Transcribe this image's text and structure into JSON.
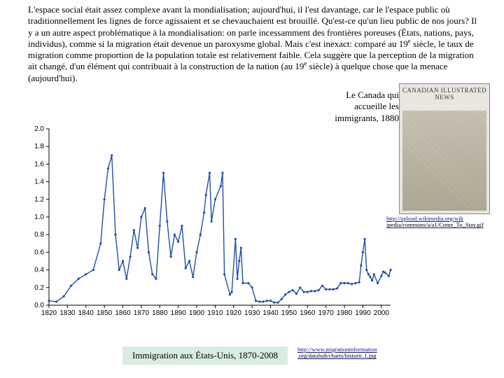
{
  "mainText": "L'espace social était assez complexe avant la mondialisation; aujourd'hui, il l'est davantage, car le l'espace public où traditionnellement les lignes de force agissaient et se chevauchaient est brouillé. Qu'est-ce qu'un lieu public de nos jours? Il y a un autre aspect problématique à la mondialisation: on parle incessamment des frontières poreuses (États, nations, pays, individus), comme si la migration était devenue un paroxysme global. Mais c'est inexact: comparé au 19",
  "mainText2": " siècle, le taux de migration comme proportion de la population totale est relativement faible. Cela suggère que la perception de la migration ait changé, d'un élément qui contribuait à la construction de la nation (au 19",
  "mainText3": " siècle) à quelque chose que la menace (aujourd'hui).",
  "supE": "e",
  "canadaCaption": "Le Canada qui accueille les immigrants, 1880",
  "newspaperMasthead": "CANADIAN ILLUSTRATED NEWS",
  "urlImg1": "http://upload.wikimedia.org/wik",
  "urlImg2": "ipedia/commons/a/a1/Come_To_Stay.gif",
  "urlChart1": "http://www.migrationinformation",
  "urlChart2": ".org/datahub/charts/historic.1.jpg",
  "usCaption": "Immigration aux États-Unis, 1870-2008",
  "chart": {
    "xmin": 1820,
    "xmax": 2005,
    "ymin": 0.0,
    "ymax": 2.0,
    "ytick_step": 0.2,
    "xtick_step": 10,
    "line_color": "#1f4fa8",
    "marker_radius": 1.6,
    "series": [
      [
        1820,
        0.05
      ],
      [
        1824,
        0.04
      ],
      [
        1828,
        0.1
      ],
      [
        1832,
        0.22
      ],
      [
        1836,
        0.3
      ],
      [
        1840,
        0.35
      ],
      [
        1844,
        0.4
      ],
      [
        1848,
        0.7
      ],
      [
        1850,
        1.2
      ],
      [
        1852,
        1.55
      ],
      [
        1854,
        1.7
      ],
      [
        1856,
        0.8
      ],
      [
        1858,
        0.4
      ],
      [
        1860,
        0.5
      ],
      [
        1862,
        0.3
      ],
      [
        1864,
        0.55
      ],
      [
        1866,
        0.85
      ],
      [
        1868,
        0.65
      ],
      [
        1870,
        1.0
      ],
      [
        1872,
        1.1
      ],
      [
        1874,
        0.6
      ],
      [
        1876,
        0.35
      ],
      [
        1878,
        0.3
      ],
      [
        1880,
        0.9
      ],
      [
        1882,
        1.5
      ],
      [
        1884,
        0.95
      ],
      [
        1886,
        0.55
      ],
      [
        1888,
        0.8
      ],
      [
        1890,
        0.72
      ],
      [
        1892,
        0.9
      ],
      [
        1894,
        0.42
      ],
      [
        1896,
        0.5
      ],
      [
        1898,
        0.32
      ],
      [
        1900,
        0.6
      ],
      [
        1902,
        0.8
      ],
      [
        1904,
        1.05
      ],
      [
        1905,
        1.25
      ],
      [
        1907,
        1.5
      ],
      [
        1908,
        0.95
      ],
      [
        1910,
        1.2
      ],
      [
        1913,
        1.35
      ],
      [
        1914,
        1.5
      ],
      [
        1915,
        0.35
      ],
      [
        1918,
        0.12
      ],
      [
        1919,
        0.15
      ],
      [
        1921,
        0.75
      ],
      [
        1922,
        0.3
      ],
      [
        1923,
        0.5
      ],
      [
        1924,
        0.65
      ],
      [
        1925,
        0.25
      ],
      [
        1928,
        0.25
      ],
      [
        1930,
        0.2
      ],
      [
        1932,
        0.05
      ],
      [
        1934,
        0.04
      ],
      [
        1936,
        0.04
      ],
      [
        1938,
        0.05
      ],
      [
        1940,
        0.05
      ],
      [
        1942,
        0.03
      ],
      [
        1944,
        0.03
      ],
      [
        1946,
        0.07
      ],
      [
        1948,
        0.12
      ],
      [
        1950,
        0.15
      ],
      [
        1952,
        0.17
      ],
      [
        1954,
        0.13
      ],
      [
        1956,
        0.2
      ],
      [
        1958,
        0.15
      ],
      [
        1960,
        0.15
      ],
      [
        1962,
        0.16
      ],
      [
        1964,
        0.16
      ],
      [
        1966,
        0.17
      ],
      [
        1968,
        0.22
      ],
      [
        1970,
        0.18
      ],
      [
        1972,
        0.18
      ],
      [
        1974,
        0.18
      ],
      [
        1976,
        0.19
      ],
      [
        1978,
        0.25
      ],
      [
        1980,
        0.25
      ],
      [
        1982,
        0.25
      ],
      [
        1984,
        0.24
      ],
      [
        1986,
        0.25
      ],
      [
        1988,
        0.26
      ],
      [
        1989,
        0.45
      ],
      [
        1990,
        0.6
      ],
      [
        1991,
        0.75
      ],
      [
        1992,
        0.4
      ],
      [
        1993,
        0.35
      ],
      [
        1994,
        0.32
      ],
      [
        1995,
        0.28
      ],
      [
        1996,
        0.35
      ],
      [
        1998,
        0.25
      ],
      [
        2000,
        0.33
      ],
      [
        2001,
        0.38
      ],
      [
        2002,
        0.37
      ],
      [
        2004,
        0.33
      ],
      [
        2005,
        0.4
      ]
    ]
  }
}
